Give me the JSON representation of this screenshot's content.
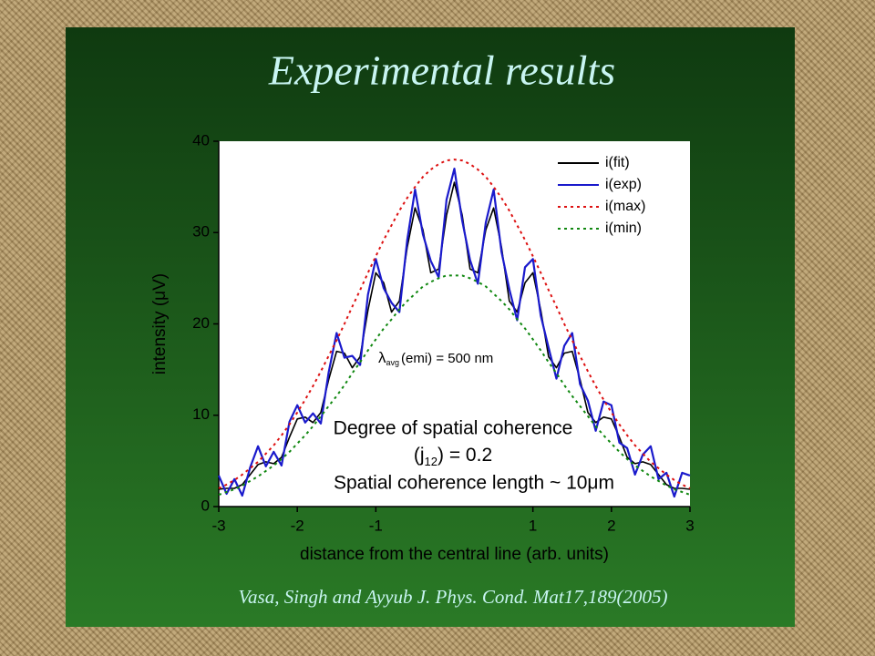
{
  "title": "Experimental results",
  "citation": "Vasa, Singh and Ayyub J. Phys. Cond. Mat17,189(2005)",
  "chart_data": {
    "type": "line",
    "xlabel": "distance from the central line (arb. units)",
    "ylabel": "intensity (μV)",
    "x": [
      -3,
      -2.9,
      -2.8,
      -2.7,
      -2.6,
      -2.5,
      -2.4,
      -2.3,
      -2.2,
      -2.1,
      -2,
      -1.9,
      -1.8,
      -1.7,
      -1.6,
      -1.5,
      -1.4,
      -1.3,
      -1.2,
      -1.1,
      -1,
      -0.9,
      -0.8,
      -0.7,
      -0.6,
      -0.5,
      -0.4,
      -0.3,
      -0.2,
      -0.1,
      0,
      0.1,
      0.2,
      0.3,
      0.4,
      0.5,
      0.6,
      0.7,
      0.8,
      0.9,
      1,
      1.1,
      1.2,
      1.3,
      1.4,
      1.5,
      1.6,
      1.7,
      1.8,
      1.9,
      2,
      2.1,
      2.2,
      2.3,
      2.4,
      2.5,
      2.6,
      2.7,
      2.8,
      2.9,
      3
    ],
    "series": [
      {
        "name": "i(fit)",
        "color": "#000000",
        "dashed": false,
        "values": [
          1.9,
          2.0,
          2.0,
          2.4,
          3.5,
          4.6,
          4.9,
          4.7,
          5.4,
          7.6,
          9.6,
          9.8,
          9.2,
          10.3,
          13.9,
          17.0,
          16.8,
          15.2,
          16.4,
          21.5,
          25.6,
          24.5,
          21.3,
          22.5,
          28.4,
          32.7,
          30.3,
          25.6,
          26.0,
          31.9,
          35.5,
          31.9,
          26.0,
          25.6,
          30.3,
          32.7,
          28.4,
          22.5,
          21.3,
          24.5,
          25.6,
          21.5,
          16.4,
          15.2,
          16.8,
          17.0,
          13.9,
          10.3,
          9.2,
          9.8,
          9.6,
          7.6,
          5.4,
          4.7,
          4.9,
          4.6,
          3.5,
          2.4,
          2.0,
          2.0,
          1.9
        ]
      },
      {
        "name": "i(exp)",
        "color": "#1a1acc",
        "dashed": false,
        "values": [
          3.4,
          1.4,
          3.0,
          1.2,
          4.3,
          6.6,
          4.4,
          6.0,
          4.5,
          9.3,
          11.1,
          9.2,
          10.2,
          9.1,
          14.7,
          19.0,
          16.3,
          16.5,
          15.5,
          23.2,
          27.1,
          23.9,
          22.3,
          21.3,
          29.2,
          34.7,
          29.8,
          26.9,
          25.1,
          33.6,
          37.0,
          31.3,
          27.0,
          24.4,
          31.1,
          34.7,
          27.9,
          23.8,
          20.4,
          26.2,
          27.1,
          20.9,
          17.4,
          14.0,
          17.6,
          19.0,
          13.4,
          11.6,
          8.3,
          11.5,
          11.1,
          7.0,
          6.4,
          3.5,
          5.7,
          6.6,
          3.0,
          3.7,
          1.1,
          3.7,
          3.4
        ]
      },
      {
        "name": "i(max)",
        "color": "#dd1111",
        "dashed": true,
        "values": [
          2.0,
          2.4,
          2.9,
          3.5,
          4.2,
          4.9,
          5.8,
          6.7,
          7.8,
          9.0,
          10.3,
          11.7,
          13.2,
          14.8,
          16.5,
          18.2,
          20.0,
          21.9,
          23.7,
          25.6,
          27.4,
          29.2,
          30.8,
          32.4,
          33.8,
          35.0,
          36.1,
          36.9,
          37.5,
          37.9,
          38.0,
          37.9,
          37.5,
          36.9,
          36.1,
          35.0,
          33.8,
          32.4,
          30.8,
          29.2,
          27.4,
          25.6,
          23.7,
          21.9,
          20.0,
          18.2,
          16.5,
          14.8,
          13.2,
          11.7,
          10.3,
          9.0,
          7.8,
          6.7,
          5.8,
          4.9,
          4.2,
          3.5,
          2.9,
          2.4,
          2.0
        ]
      },
      {
        "name": "i(min)",
        "color": "#118811",
        "dashed": true,
        "values": [
          1.3,
          1.6,
          1.9,
          2.3,
          2.8,
          3.3,
          3.9,
          4.5,
          5.2,
          6.0,
          6.9,
          7.8,
          8.8,
          9.9,
          11.0,
          12.1,
          13.3,
          14.6,
          15.8,
          17.1,
          18.3,
          19.5,
          20.5,
          21.6,
          22.5,
          23.3,
          24.1,
          24.6,
          25.0,
          25.3,
          25.3,
          25.3,
          25.0,
          24.6,
          24.1,
          23.3,
          22.5,
          21.6,
          20.5,
          19.5,
          18.3,
          17.1,
          15.8,
          14.6,
          13.3,
          12.1,
          11.0,
          9.9,
          8.8,
          7.8,
          6.9,
          6.0,
          5.2,
          4.5,
          3.9,
          3.3,
          2.8,
          2.3,
          1.9,
          1.6,
          1.3
        ]
      }
    ],
    "xlim": [
      -3,
      3
    ],
    "xticks": [
      -3,
      -2,
      -1,
      1,
      2,
      3
    ],
    "ylim": [
      0,
      40
    ],
    "yticks": [
      0,
      10,
      20,
      30,
      40
    ],
    "legend": "upper right",
    "annotations": [
      {
        "symbol": "λ",
        "sub": "avg",
        "after": "(emi) = 500 nm"
      },
      {
        "line1": "Degree of spatial coherence",
        "line2": {
          "before": "(j",
          "sub": "12",
          "after": ") = 0.2"
        },
        "line3": "Spatial coherence length ~ 10μm"
      }
    ]
  }
}
